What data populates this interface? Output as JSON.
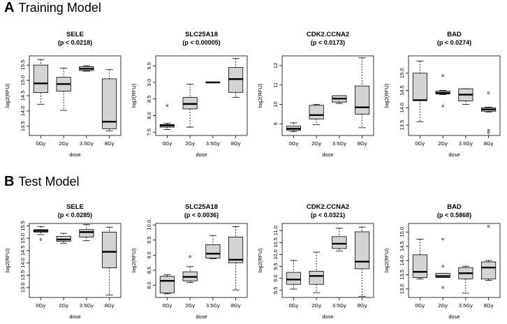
{
  "section_a": {
    "letter": "A",
    "title": "Training Model"
  },
  "section_b": {
    "letter": "B",
    "title": "Test Model"
  },
  "chart_data": [
    {
      "type": "boxplot",
      "panel": "A",
      "title": "SELE",
      "subtitle": "(p < 0.0218)",
      "xlabel": "dose",
      "ylabel": "log2(RFU)",
      "categories": [
        "0Gy",
        "2Gy",
        "3.5Gy",
        "8Gy"
      ],
      "ylim": [
        13.2,
        15.8
      ],
      "yticks": [
        "13.5",
        "14.0",
        "14.5",
        "15.0",
        "15.5"
      ],
      "boxes": [
        {
          "min": 14.22,
          "q1": 14.6,
          "median": 14.9,
          "q3": 15.5,
          "max": 15.68,
          "outliers": []
        },
        {
          "min": 14.02,
          "q1": 14.65,
          "median": 14.88,
          "q3": 15.1,
          "max": 15.4,
          "outliers": []
        },
        {
          "min": 15.3,
          "q1": 15.32,
          "median": 15.38,
          "q3": 15.45,
          "max": 15.48,
          "outliers": []
        },
        {
          "min": 13.35,
          "q1": 13.42,
          "median": 13.65,
          "q3": 15.05,
          "max": 15.35,
          "outliers": []
        }
      ]
    },
    {
      "type": "boxplot",
      "panel": "A",
      "title": "SLC25A18",
      "subtitle": "(p < 0.00005)",
      "xlabel": "dose",
      "ylabel": "log2(RFU)",
      "categories": [
        "0Gy",
        "2Gy",
        "3.5Gy",
        "8Gy"
      ],
      "ylim": [
        7.4,
        9.8
      ],
      "yticks": [
        "7.5",
        "8.0",
        "8.5",
        "9.0",
        "9.5"
      ],
      "boxes": [
        {
          "min": 7.58,
          "q1": 7.65,
          "median": 7.7,
          "q3": 7.73,
          "max": 7.77,
          "outliers": [
            8.3
          ]
        },
        {
          "min": 7.65,
          "q1": 8.2,
          "median": 8.35,
          "q3": 8.55,
          "max": 8.95,
          "outliers": []
        },
        {
          "min": 8.99,
          "q1": 8.99,
          "median": 9.0,
          "q3": 9.01,
          "max": 9.01,
          "outliers": []
        },
        {
          "min": 8.55,
          "q1": 8.7,
          "median": 9.1,
          "q3": 9.45,
          "max": 9.72,
          "outliers": []
        }
      ]
    },
    {
      "type": "boxplot",
      "panel": "A",
      "title": "CDK2.CCNA2",
      "subtitle": "(p < 0.0173)",
      "xlabel": "dose",
      "ylabel": "log2(RFU)",
      "categories": [
        "0Gy",
        "2Gy",
        "3.5Gy",
        "8Gy"
      ],
      "ylim": [
        8.4,
        12.5
      ],
      "yticks": [
        "9",
        "10",
        "11",
        "12"
      ],
      "boxes": [
        {
          "min": 8.6,
          "q1": 8.67,
          "median": 8.75,
          "q3": 8.88,
          "max": 9.05,
          "outliers": []
        },
        {
          "min": 8.95,
          "q1": 9.25,
          "median": 9.45,
          "q3": 9.95,
          "max": 10.0,
          "outliers": []
        },
        {
          "min": 10.05,
          "q1": 10.12,
          "median": 10.3,
          "q3": 10.45,
          "max": 10.45,
          "outliers": []
        },
        {
          "min": 8.8,
          "q1": 9.5,
          "median": 9.85,
          "q3": 10.95,
          "max": 12.4,
          "outliers": []
        }
      ]
    },
    {
      "type": "boxplot",
      "panel": "A",
      "title": "BAD",
      "subtitle": "(p < 0.0274)",
      "xlabel": "dose",
      "ylabel": "log2(RFU)",
      "categories": [
        "0Gy",
        "2Gy",
        "3.5Gy",
        "8Gy"
      ],
      "ylim": [
        13.2,
        15.5
      ],
      "yticks": [
        "13.5",
        "14.0",
        "14.5",
        "15.0"
      ],
      "boxes": [
        {
          "min": 13.6,
          "q1": 14.22,
          "median": 14.22,
          "q3": 15.0,
          "max": 15.35,
          "outliers": []
        },
        {
          "min": 14.38,
          "q1": 14.4,
          "median": 14.43,
          "q3": 14.48,
          "max": 14.5,
          "outliers": [
            14.93,
            14.05
          ]
        },
        {
          "min": 14.1,
          "q1": 14.2,
          "median": 14.38,
          "q3": 14.55,
          "max": 14.55,
          "outliers": []
        },
        {
          "min": 13.88,
          "q1": 13.9,
          "median": 13.95,
          "q3": 14.0,
          "max": 14.02,
          "outliers": [
            14.43,
            13.35,
            13.28
          ]
        }
      ]
    },
    {
      "type": "boxplot",
      "panel": "B",
      "title": "SELE",
      "subtitle": "(p < 0.0285)",
      "xlabel": "dose",
      "ylabel": "log2(RFU)",
      "categories": [
        "0Gy",
        "2Gy",
        "3.5Gy",
        "8Gy"
      ],
      "ylim": [
        12.6,
        15.6
      ],
      "yticks": [
        "13.0",
        "13.5",
        "14.0",
        "14.5",
        "15.0",
        "15.5"
      ],
      "boxes": [
        {
          "min": 15.15,
          "q1": 15.25,
          "median": 15.3,
          "q3": 15.35,
          "max": 15.48,
          "outliers": [
            14.95
          ]
        },
        {
          "min": 14.8,
          "q1": 14.88,
          "median": 14.95,
          "q3": 15.08,
          "max": 15.2,
          "outliers": []
        },
        {
          "min": 14.9,
          "q1": 15.05,
          "median": 15.25,
          "q3": 15.35,
          "max": 15.55,
          "outliers": []
        },
        {
          "min": 12.7,
          "q1": 13.8,
          "median": 14.45,
          "q3": 15.25,
          "max": 15.45,
          "outliers": []
        }
      ]
    },
    {
      "type": "boxplot",
      "panel": "B",
      "title": "SLC25A18",
      "subtitle": "(p < 0.0036)",
      "xlabel": "dose",
      "ylabel": "log2(RFU)",
      "categories": [
        "0Gy",
        "2Gy",
        "3.5Gy",
        "8Gy"
      ],
      "ylim": [
        7.6,
        10.05
      ],
      "yticks": [
        "8.0",
        "8.5",
        "9.0",
        "9.5",
        "10.0"
      ],
      "boxes": [
        {
          "min": 7.72,
          "q1": 7.75,
          "median": 8.15,
          "q3": 8.3,
          "max": 8.35,
          "outliers": []
        },
        {
          "min": 8.1,
          "q1": 8.15,
          "median": 8.28,
          "q3": 8.45,
          "max": 8.62,
          "outliers": [
            8.95
          ]
        },
        {
          "min": 8.88,
          "q1": 8.9,
          "median": 9.05,
          "q3": 9.35,
          "max": 9.65,
          "outliers": []
        },
        {
          "min": 7.85,
          "q1": 8.75,
          "median": 8.85,
          "q3": 9.6,
          "max": 9.95,
          "outliers": []
        }
      ]
    },
    {
      "type": "boxplot",
      "panel": "B",
      "title": "CDK2.CCNA2",
      "subtitle": "(p < 0.0321)",
      "xlabel": "dose",
      "ylabel": "log2(RFU)",
      "categories": [
        "0Gy",
        "2Gy",
        "3.5Gy",
        "8Gy"
      ],
      "ylim": [
        8.2,
        11.3
      ],
      "yticks": [
        "8.5",
        "9.0",
        "9.5",
        "10.0",
        "10.5",
        "11.0"
      ],
      "boxes": [
        {
          "min": 8.55,
          "q1": 8.75,
          "median": 8.95,
          "q3": 9.25,
          "max": 9.75,
          "outliers": []
        },
        {
          "min": 8.4,
          "q1": 8.75,
          "median": 9.1,
          "q3": 9.3,
          "max": 10.1,
          "outliers": []
        },
        {
          "min": 10.15,
          "q1": 10.25,
          "median": 10.45,
          "q3": 10.75,
          "max": 11.1,
          "outliers": []
        },
        {
          "min": 8.25,
          "q1": 9.4,
          "median": 9.7,
          "q3": 10.95,
          "max": 11.15,
          "outliers": []
        }
      ]
    },
    {
      "type": "boxplot",
      "panel": "B",
      "title": "BAD",
      "subtitle": "(p < 0.5868)",
      "xlabel": "dose",
      "ylabel": "log2(RFU)",
      "categories": [
        "0Gy",
        "2Gy",
        "3.5Gy",
        "8Gy"
      ],
      "ylim": [
        12.7,
        15.3
      ],
      "yticks": [
        "13.0",
        "13.5",
        "14.0",
        "14.5",
        "15.0"
      ],
      "boxes": [
        {
          "min": 13.35,
          "q1": 13.4,
          "median": 13.6,
          "q3": 14.2,
          "max": 14.75,
          "outliers": []
        },
        {
          "min": 13.4,
          "q1": 13.4,
          "median": 13.45,
          "q3": 13.55,
          "max": 13.55,
          "outliers": [
            14.75,
            13.8,
            13.05
          ]
        },
        {
          "min": 12.85,
          "q1": 13.35,
          "median": 13.55,
          "q3": 13.75,
          "max": 13.8,
          "outliers": []
        },
        {
          "min": 13.3,
          "q1": 13.35,
          "median": 13.75,
          "q3": 13.95,
          "max": 14.0,
          "outliers": [
            15.2
          ]
        }
      ]
    }
  ]
}
